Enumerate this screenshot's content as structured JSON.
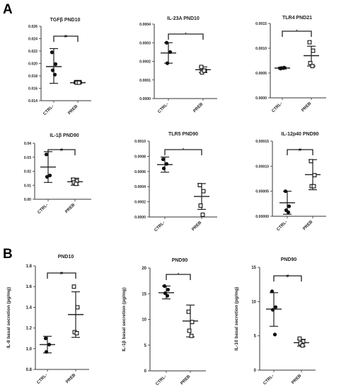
{
  "figure": {
    "section_labels": [
      "A",
      "B"
    ]
  },
  "chart_data": [
    {
      "type": "scatter",
      "title": "TGFβ PND10",
      "section": "A",
      "categories": [
        "CTRL-",
        "PREB"
      ],
      "ylim": [
        0.014,
        0.026
      ],
      "yticks": [
        0.014,
        0.016,
        0.018,
        0.02,
        0.022,
        0.024,
        0.026
      ],
      "yticklabels": [
        "0.014",
        "0.016",
        "0.018",
        "0.020",
        "0.022",
        "0.024",
        "0.026"
      ],
      "ylabel": "",
      "series": [
        {
          "marker": "circle",
          "points": [
            0.0218,
            0.0199,
            0.0189,
            0.0182
          ],
          "mean": 0.0195,
          "sd_low": 0.0168,
          "sd_high": 0.0224
        },
        {
          "marker": "square",
          "points": [
            0.017,
            0.017,
            0.0169,
            0.0169
          ],
          "mean": 0.0169,
          "sd_low": 0.0168,
          "sd_high": 0.017
        }
      ],
      "significance": "#"
    },
    {
      "type": "scatter",
      "title": "IL-23A PND10",
      "section": "A",
      "categories": [
        "CTRL-",
        "PREB"
      ],
      "ylim": [
        0,
        0.0004
      ],
      "yticks": [
        0,
        0.0001,
        0.0002,
        0.0003,
        0.0004
      ],
      "yticklabels": [
        "0.0000",
        "0.0001",
        "0.0002",
        "0.0003",
        "0.0004"
      ],
      "ylabel": "",
      "series": [
        {
          "marker": "circle",
          "points": [
            0.0003,
            0.00025,
            0.00019
          ],
          "mean": 0.000245,
          "sd_low": 0.00019,
          "sd_high": 0.0003
        },
        {
          "marker": "square",
          "points": [
            0.00017,
            0.00015,
            0.00014,
            0.00015
          ],
          "mean": 0.000155,
          "sd_low": 0.00014,
          "sd_high": 0.00017
        }
      ],
      "significance": "*"
    },
    {
      "type": "scatter",
      "title": "TLR4 PND21",
      "section": "A",
      "categories": [
        "CTRL-",
        "PREB"
      ],
      "ylim": [
        0,
        0.0015
      ],
      "yticks": [
        0,
        0.0005,
        0.001,
        0.0015
      ],
      "yticklabels": [
        "0.0000",
        "0.0005",
        "0.0010",
        "0.0015"
      ],
      "ylabel": "",
      "series": [
        {
          "marker": "circle",
          "points": [
            0.00059,
            0.00061,
            0.0006,
            0.0006
          ],
          "mean": 0.0006,
          "sd_low": 0.00058,
          "sd_high": 0.00062
        },
        {
          "marker": "square",
          "points": [
            0.00112,
            0.00095,
            0.0007,
            0.00064
          ],
          "mean": 0.00085,
          "sd_low": 0.00064,
          "sd_high": 0.00104
        }
      ],
      "significance": "*"
    },
    {
      "type": "scatter",
      "title": "IL-1β PND90",
      "section": "A",
      "categories": [
        "CTRL-",
        "PREB"
      ],
      "ylim": [
        0,
        0.04
      ],
      "yticks": [
        0,
        0.01,
        0.02,
        0.03,
        0.04
      ],
      "yticklabels": [
        "0.00",
        "0.01",
        "0.02",
        "0.03",
        "0.04"
      ],
      "ylabel": "",
      "series": [
        {
          "marker": "circle",
          "points": [
            0.032,
            0.017,
            0.016
          ],
          "mean": 0.023,
          "sd_low": 0.012,
          "sd_high": 0.034
        },
        {
          "marker": "square",
          "points": [
            0.014,
            0.013,
            0.012,
            0.011
          ],
          "mean": 0.0125,
          "sd_low": 0.01,
          "sd_high": 0.015
        }
      ],
      "significance": "#"
    },
    {
      "type": "scatter",
      "title": "TLR5 PND90",
      "section": "A",
      "categories": [
        "CTRL-",
        "PREB"
      ],
      "ylim": [
        0,
        0.001
      ],
      "yticks": [
        0,
        0.0002,
        0.0004,
        0.0006,
        0.0008,
        0.001
      ],
      "yticklabels": [
        "0.0000",
        "0.0002",
        "0.0004",
        "0.0006",
        "0.0008",
        "0.0010"
      ],
      "ylabel": "",
      "series": [
        {
          "marker": "circle",
          "points": [
            0.00076,
            0.0007,
            0.00064
          ],
          "mean": 0.00069,
          "sd_low": 0.00059,
          "sd_high": 0.00079
        },
        {
          "marker": "square",
          "points": [
            0.00042,
            0.00034,
            0.00015,
            3e-05
          ],
          "mean": 0.00027,
          "sd_low": 0.0001,
          "sd_high": 0.00044
        }
      ],
      "significance": "*"
    },
    {
      "type": "scatter",
      "title": "IL-12p40 PND90",
      "section": "A",
      "categories": [
        "CTRL-",
        "PREB"
      ],
      "ylim": [
        0,
        0.00015
      ],
      "yticks": [
        0,
        5e-05,
        0.0001,
        0.00015
      ],
      "yticklabels": [
        "0.00000",
        "0.00005",
        "0.00010",
        "0.00015"
      ],
      "ylabel": "",
      "series": [
        {
          "marker": "circle",
          "points": [
            5e-05,
            2e-05,
            1.2e-05,
            8e-06
          ],
          "mean": 2.7e-05,
          "sd_low": 4e-06,
          "sd_high": 5e-05
        },
        {
          "marker": "square",
          "points": [
            0.00011,
            8.2e-05,
            6e-05,
            6e-05
          ],
          "mean": 8.3e-05,
          "sd_low": 5.3e-05,
          "sd_high": 0.000113
        }
      ],
      "significance": "#"
    },
    {
      "type": "scatter",
      "title": "PND10",
      "section": "B",
      "categories": [
        "CTRL-",
        "PREB"
      ],
      "ylim": [
        0.8,
        1.8
      ],
      "yticks": [
        0.8,
        1.0,
        1.2,
        1.4,
        1.6,
        1.8
      ],
      "yticklabels": [
        "0.8",
        "1.0",
        "1.2",
        "1.4",
        "1.6",
        "1.8"
      ],
      "ylabel": "IL-8 basal secretion (pg/mg)",
      "series": [
        {
          "marker": "circle",
          "points": [
            1.1,
            1.04,
            0.97
          ],
          "mean": 1.04,
          "sd_low": 0.96,
          "sd_high": 1.12
        },
        {
          "marker": "square",
          "points": [
            1.6,
            1.4,
            1.16,
            1.15
          ],
          "mean": 1.33,
          "sd_low": 1.11,
          "sd_high": 1.55
        }
      ],
      "significance": "#"
    },
    {
      "type": "scatter",
      "title": "PND90",
      "section": "B",
      "categories": [
        "CTRL-",
        "PREB"
      ],
      "ylim": [
        0,
        20
      ],
      "yticks": [
        0,
        5,
        10,
        15,
        20
      ],
      "yticklabels": [
        "0",
        "5",
        "10",
        "15",
        "20"
      ],
      "ylabel": "IL-1β basal secretion (pg/mg)",
      "series": [
        {
          "marker": "circle",
          "points": [
            16.5,
            15.8,
            15.1,
            14.6
          ],
          "mean": 15.2,
          "sd_low": 14.0,
          "sd_high": 16.5
        },
        {
          "marker": "square",
          "points": [
            11.5,
            9.5,
            7.8,
            6.8
          ],
          "mean": 9.7,
          "sd_low": 6.6,
          "sd_high": 12.8
        }
      ],
      "significance": "*"
    },
    {
      "type": "scatter",
      "title": "PND90",
      "section": "B",
      "categories": [
        "CTRL-",
        "PREB"
      ],
      "ylim": [
        0,
        15
      ],
      "yticks": [
        0,
        5,
        10,
        15
      ],
      "yticklabels": [
        "0",
        "5",
        "10",
        "15"
      ],
      "ylabel": "IL-10 basal secretion (pg/mg)",
      "series": [
        {
          "marker": "circle",
          "points": [
            11.5,
            9.2,
            8.8,
            5.2
          ],
          "mean": 8.9,
          "sd_low": 6.4,
          "sd_high": 11.3
        },
        {
          "marker": "square",
          "points": [
            4.6,
            4.2,
            3.9,
            3.6
          ],
          "mean": 4.0,
          "sd_low": 3.5,
          "sd_high": 4.5
        }
      ],
      "significance": "#"
    }
  ]
}
